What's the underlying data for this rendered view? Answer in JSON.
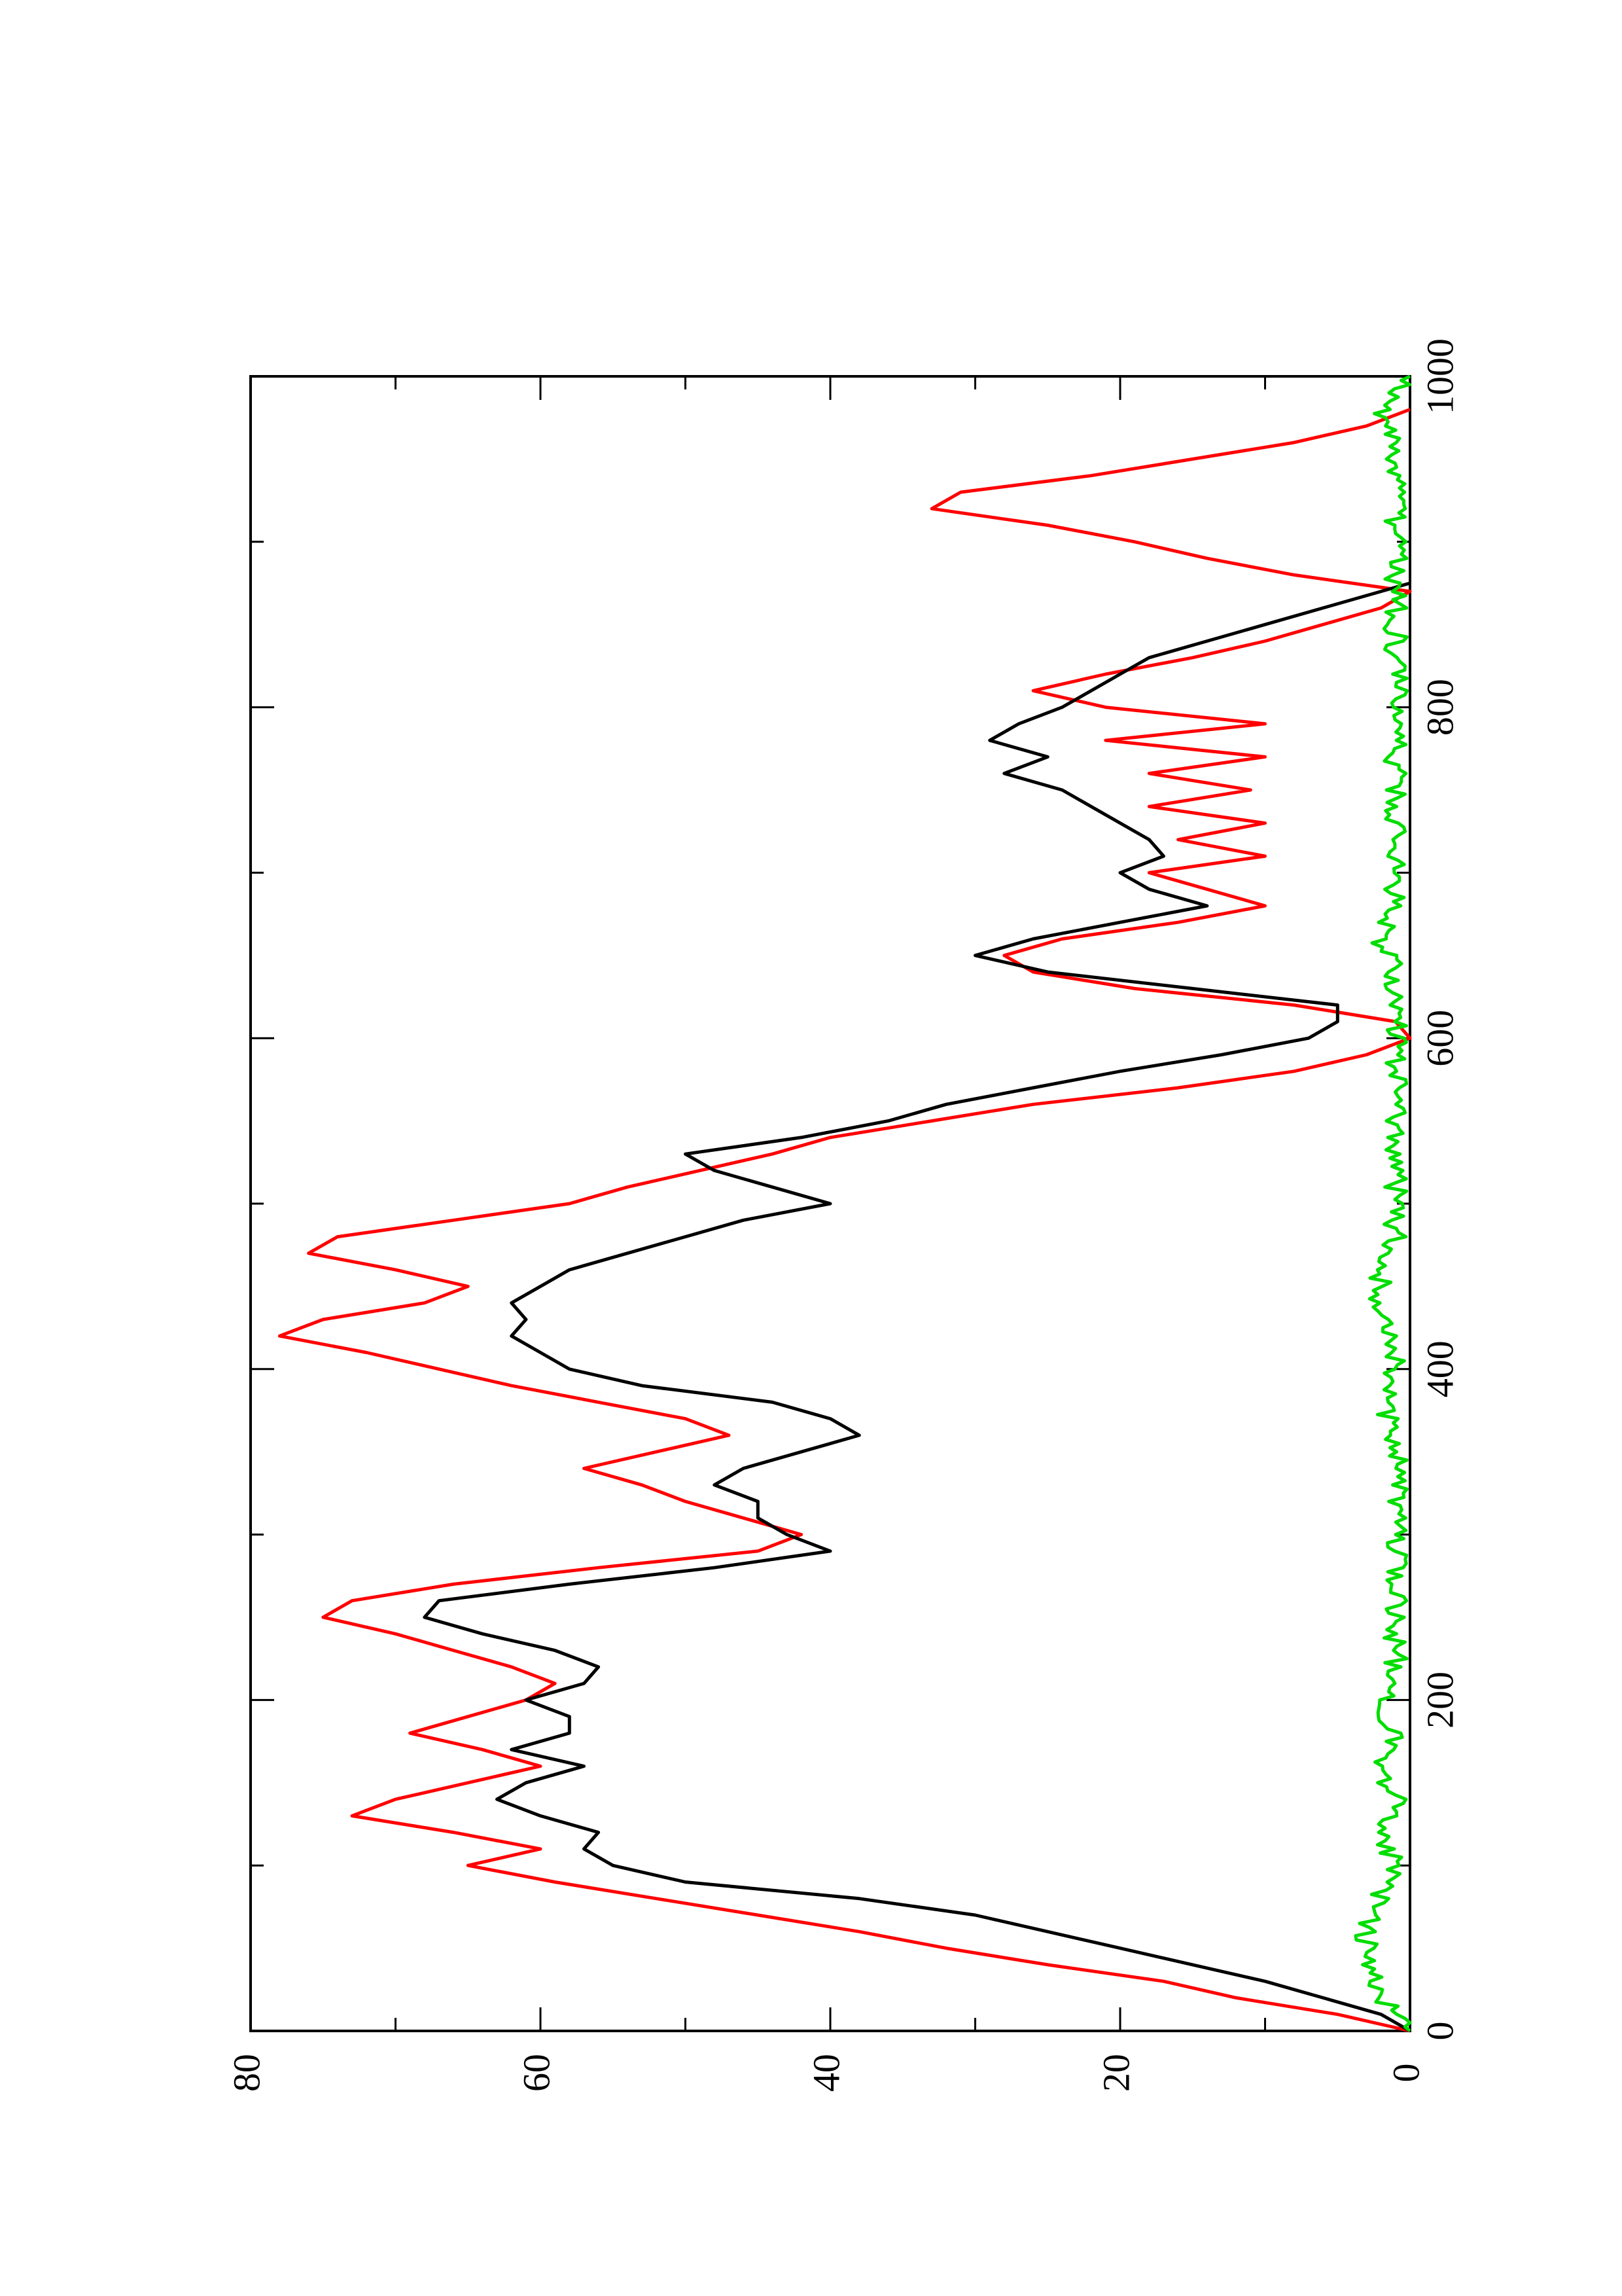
{
  "chart_data": {
    "type": "line",
    "orientation": "rotated-90-ccw",
    "title": "",
    "xlabel": "",
    "ylabel": "",
    "xlim": [
      0,
      1000
    ],
    "ylim": [
      0,
      80
    ],
    "x_ticks": [
      0,
      200,
      400,
      600,
      800,
      1000
    ],
    "x_minor_ticks": [
      100,
      300,
      500,
      700,
      900
    ],
    "y_ticks": [
      0,
      20,
      40,
      60,
      80
    ],
    "y_minor_ticks": [
      10,
      30,
      50,
      70
    ],
    "grid": false,
    "legend": "none",
    "series": [
      {
        "color": "#ff0000",
        "step": true,
        "points": [
          [
            0,
            0
          ],
          [
            10,
            5
          ],
          [
            20,
            12
          ],
          [
            30,
            17
          ],
          [
            40,
            25
          ],
          [
            50,
            32
          ],
          [
            60,
            38
          ],
          [
            70,
            45
          ],
          [
            80,
            52
          ],
          [
            90,
            59
          ],
          [
            100,
            65
          ],
          [
            110,
            60
          ],
          [
            120,
            66
          ],
          [
            130,
            73
          ],
          [
            140,
            70
          ],
          [
            150,
            65
          ],
          [
            160,
            60
          ],
          [
            170,
            64
          ],
          [
            180,
            69
          ],
          [
            190,
            65
          ],
          [
            200,
            61
          ],
          [
            210,
            59
          ],
          [
            220,
            62
          ],
          [
            230,
            66
          ],
          [
            240,
            70
          ],
          [
            250,
            75
          ],
          [
            260,
            73
          ],
          [
            270,
            66
          ],
          [
            280,
            56
          ],
          [
            290,
            45
          ],
          [
            300,
            42
          ],
          [
            310,
            46
          ],
          [
            320,
            50
          ],
          [
            330,
            53
          ],
          [
            340,
            57
          ],
          [
            350,
            52
          ],
          [
            360,
            47
          ],
          [
            370,
            50
          ],
          [
            380,
            56
          ],
          [
            390,
            62
          ],
          [
            400,
            67
          ],
          [
            410,
            72
          ],
          [
            420,
            78
          ],
          [
            430,
            75
          ],
          [
            440,
            68
          ],
          [
            450,
            65
          ],
          [
            460,
            70
          ],
          [
            470,
            76
          ],
          [
            480,
            74
          ],
          [
            490,
            66
          ],
          [
            500,
            58
          ],
          [
            510,
            54
          ],
          [
            520,
            49
          ],
          [
            530,
            44
          ],
          [
            540,
            40
          ],
          [
            550,
            33
          ],
          [
            560,
            26
          ],
          [
            570,
            16
          ],
          [
            580,
            8
          ],
          [
            590,
            3
          ],
          [
            600,
            0
          ],
          [
            610,
            1
          ],
          [
            620,
            8
          ],
          [
            630,
            19
          ],
          [
            640,
            26
          ],
          [
            650,
            28
          ],
          [
            660,
            24
          ],
          [
            670,
            16
          ],
          [
            680,
            10
          ],
          [
            690,
            14
          ],
          [
            700,
            18
          ],
          [
            710,
            10
          ],
          [
            720,
            16
          ],
          [
            730,
            10
          ],
          [
            740,
            18
          ],
          [
            750,
            11
          ],
          [
            760,
            18
          ],
          [
            770,
            10
          ],
          [
            780,
            21
          ],
          [
            790,
            10
          ],
          [
            800,
            21
          ],
          [
            810,
            26
          ],
          [
            820,
            21
          ],
          [
            830,
            15
          ],
          [
            840,
            10
          ],
          [
            850,
            6
          ],
          [
            860,
            2
          ],
          [
            870,
            0
          ],
          [
            880,
            8
          ],
          [
            890,
            14
          ],
          [
            900,
            19
          ],
          [
            910,
            25
          ],
          [
            920,
            33
          ],
          [
            930,
            31
          ],
          [
            940,
            22
          ],
          [
            950,
            15
          ],
          [
            960,
            8
          ],
          [
            970,
            3
          ],
          [
            980,
            0
          ]
        ]
      },
      {
        "color": "#000000",
        "step": false,
        "points": [
          [
            0,
            0
          ],
          [
            10,
            2
          ],
          [
            20,
            6
          ],
          [
            30,
            10
          ],
          [
            40,
            15
          ],
          [
            50,
            20
          ],
          [
            60,
            25
          ],
          [
            70,
            30
          ],
          [
            80,
            38
          ],
          [
            90,
            50
          ],
          [
            100,
            55
          ],
          [
            110,
            57
          ],
          [
            120,
            56
          ],
          [
            130,
            60
          ],
          [
            140,
            63
          ],
          [
            150,
            61
          ],
          [
            160,
            57
          ],
          [
            170,
            62
          ],
          [
            180,
            58
          ],
          [
            190,
            58
          ],
          [
            200,
            61
          ],
          [
            210,
            57
          ],
          [
            220,
            56
          ],
          [
            230,
            59
          ],
          [
            240,
            64
          ],
          [
            250,
            68
          ],
          [
            260,
            67
          ],
          [
            270,
            58
          ],
          [
            280,
            48
          ],
          [
            290,
            40
          ],
          [
            300,
            43
          ],
          [
            310,
            45
          ],
          [
            320,
            45
          ],
          [
            330,
            48
          ],
          [
            340,
            46
          ],
          [
            350,
            42
          ],
          [
            360,
            38
          ],
          [
            370,
            40
          ],
          [
            380,
            44
          ],
          [
            390,
            53
          ],
          [
            400,
            58
          ],
          [
            410,
            60
          ],
          [
            420,
            62
          ],
          [
            430,
            61
          ],
          [
            440,
            62
          ],
          [
            450,
            60
          ],
          [
            460,
            58
          ],
          [
            470,
            54
          ],
          [
            480,
            50
          ],
          [
            490,
            46
          ],
          [
            500,
            40
          ],
          [
            510,
            44
          ],
          [
            520,
            48
          ],
          [
            530,
            50
          ],
          [
            540,
            42
          ],
          [
            550,
            36
          ],
          [
            560,
            32
          ],
          [
            570,
            26
          ],
          [
            580,
            20
          ],
          [
            590,
            13
          ],
          [
            600,
            7
          ],
          [
            610,
            5
          ],
          [
            620,
            5
          ],
          [
            630,
            15
          ],
          [
            640,
            25
          ],
          [
            650,
            30
          ],
          [
            660,
            26
          ],
          [
            670,
            20
          ],
          [
            680,
            14
          ],
          [
            690,
            18
          ],
          [
            700,
            20
          ],
          [
            710,
            17
          ],
          [
            720,
            18
          ],
          [
            730,
            20
          ],
          [
            740,
            22
          ],
          [
            750,
            24
          ],
          [
            760,
            28
          ],
          [
            770,
            25
          ],
          [
            780,
            29
          ],
          [
            790,
            27
          ],
          [
            800,
            24
          ],
          [
            810,
            22
          ],
          [
            820,
            20
          ],
          [
            830,
            18
          ],
          [
            840,
            14
          ],
          [
            850,
            10
          ],
          [
            860,
            6
          ],
          [
            870,
            2
          ],
          [
            875,
            0
          ]
        ]
      },
      {
        "color": "#00dd00",
        "step": false,
        "noisy": true,
        "points": [
          [
            0,
            0
          ],
          [
            20,
            2
          ],
          [
            40,
            3
          ],
          [
            60,
            3
          ],
          [
            80,
            2
          ],
          [
            100,
            1
          ],
          [
            120,
            2
          ],
          [
            140,
            1
          ],
          [
            160,
            2
          ],
          [
            180,
            1
          ],
          [
            200,
            2
          ],
          [
            220,
            1
          ],
          [
            240,
            1
          ],
          [
            260,
            1
          ],
          [
            280,
            1
          ],
          [
            300,
            1
          ],
          [
            320,
            1
          ],
          [
            340,
            1
          ],
          [
            360,
            1
          ],
          [
            380,
            2
          ],
          [
            400,
            1
          ],
          [
            420,
            1
          ],
          [
            440,
            2
          ],
          [
            460,
            2
          ],
          [
            480,
            1
          ],
          [
            500,
            1
          ],
          [
            520,
            1
          ],
          [
            540,
            1
          ],
          [
            560,
            1
          ],
          [
            580,
            1
          ],
          [
            600,
            1
          ],
          [
            620,
            1
          ],
          [
            640,
            1
          ],
          [
            660,
            2
          ],
          [
            680,
            1
          ],
          [
            700,
            1
          ],
          [
            720,
            1
          ],
          [
            740,
            1
          ],
          [
            760,
            1
          ],
          [
            780,
            1
          ],
          [
            800,
            1
          ],
          [
            820,
            1
          ],
          [
            840,
            1
          ],
          [
            860,
            1
          ],
          [
            880,
            1
          ],
          [
            900,
            1
          ],
          [
            920,
            1
          ],
          [
            940,
            1
          ],
          [
            960,
            1
          ],
          [
            980,
            2
          ],
          [
            1000,
            0
          ]
        ]
      }
    ]
  },
  "x_tick_labels": [
    "0",
    "200",
    "400",
    "600",
    "800",
    "1000"
  ],
  "y_tick_labels": [
    "0",
    "20",
    "40",
    "60",
    "80"
  ]
}
